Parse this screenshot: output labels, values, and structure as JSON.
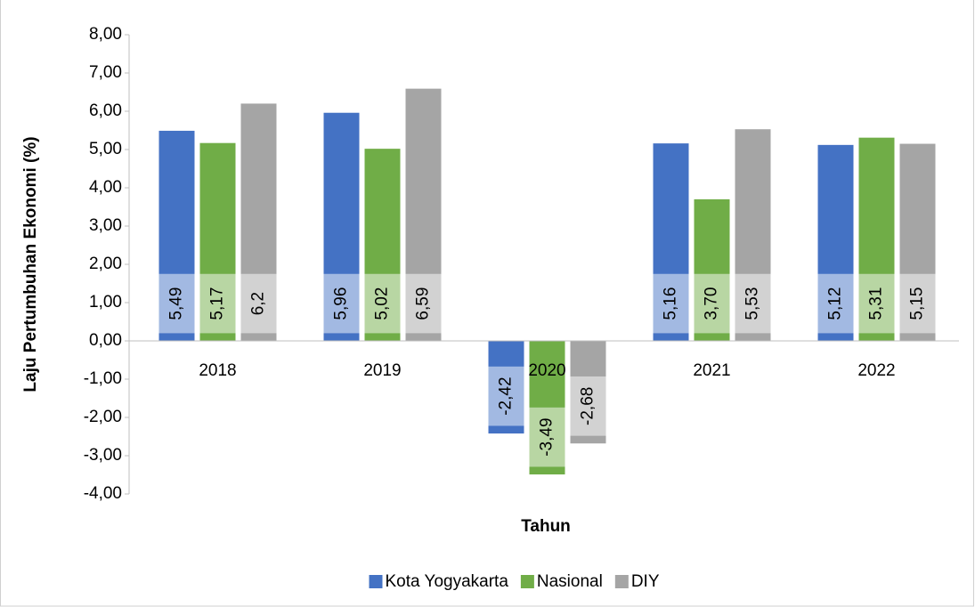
{
  "chart_data": {
    "type": "bar",
    "categories": [
      "2018",
      "2019",
      "2020",
      "2021",
      "2022"
    ],
    "series": [
      {
        "name": "Kota Yogyakarta",
        "color": "#4472c4",
        "values": [
          5.49,
          5.96,
          -2.42,
          5.16,
          5.12
        ],
        "value_labels": [
          "5,49",
          "5,96",
          "-2,42",
          "5,16",
          "5,12"
        ]
      },
      {
        "name": "Nasional",
        "color": "#70ad47",
        "values": [
          5.17,
          5.02,
          -3.49,
          3.7,
          5.31
        ],
        "value_labels": [
          "5,17",
          "5,02",
          "-3,49",
          "3,70",
          "5,31"
        ]
      },
      {
        "name": "DIY",
        "color": "#a5a5a5",
        "values": [
          6.2,
          6.59,
          -2.68,
          5.53,
          5.15
        ],
        "value_labels": [
          "6,2",
          "6,59",
          "-2,68",
          "5,53",
          "5,15"
        ]
      }
    ],
    "ylim": [
      -4,
      8
    ],
    "yticks": [
      {
        "value": 8,
        "label": "8,00"
      },
      {
        "value": 7,
        "label": "7,00"
      },
      {
        "value": 6,
        "label": "6,00"
      },
      {
        "value": 5,
        "label": "5,00"
      },
      {
        "value": 4,
        "label": "4,00"
      },
      {
        "value": 3,
        "label": "3,00"
      },
      {
        "value": 2,
        "label": "2,00"
      },
      {
        "value": 1,
        "label": "1,00"
      },
      {
        "value": 0,
        "label": "0,00"
      },
      {
        "value": -1,
        "label": "-1,00"
      },
      {
        "value": -2,
        "label": "-2,00"
      },
      {
        "value": -3,
        "label": "-3,00"
      },
      {
        "value": -4,
        "label": "-4,00"
      }
    ],
    "y_label": "Laju Pertumbuhan Ekonomi (%)",
    "x_label": "Tahun",
    "grid": false,
    "legend": "bottom"
  }
}
